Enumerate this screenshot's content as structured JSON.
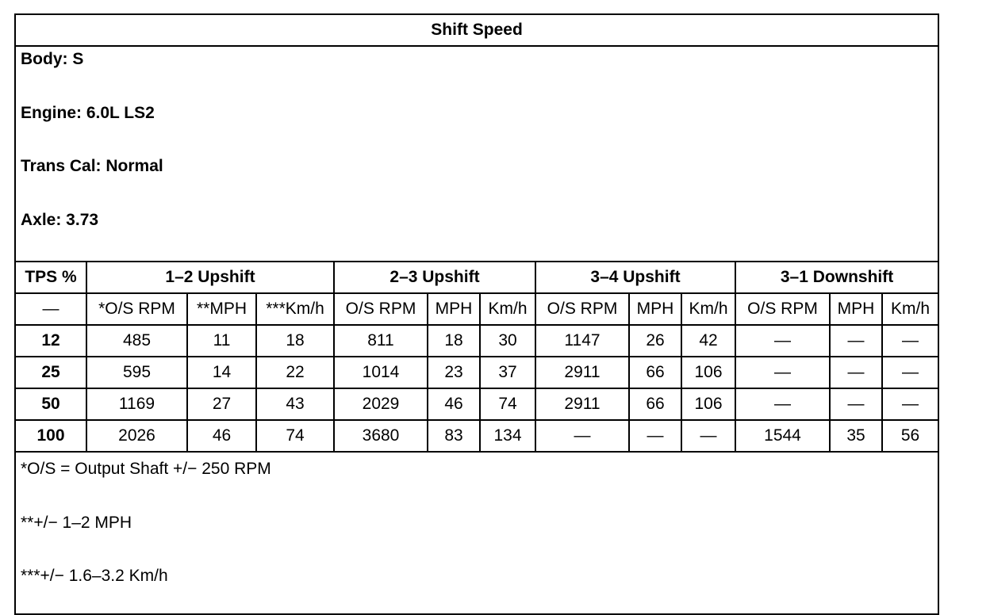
{
  "title": "Shift Speed",
  "info": [
    "Body: S",
    "Engine: 6.0L LS2",
    "Trans Cal: Normal",
    "Axle: 3.73"
  ],
  "header": {
    "tps": "TPS %",
    "groups": [
      "1–2 Upshift",
      "2–3 Upshift",
      "3–4 Upshift",
      "3–1 Downshift"
    ]
  },
  "subheader": [
    "—",
    "*O/S RPM",
    "**MPH",
    "***Km/h",
    "O/S RPM",
    "MPH",
    "Km/h",
    "O/S RPM",
    "MPH",
    "Km/h",
    "O/S RPM",
    "MPH",
    "Km/h"
  ],
  "rows": [
    [
      "12",
      "485",
      "11",
      "18",
      "811",
      "18",
      "30",
      "1147",
      "26",
      "42",
      "—",
      "—",
      "—"
    ],
    [
      "25",
      "595",
      "14",
      "22",
      "1014",
      "23",
      "37",
      "2911",
      "66",
      "106",
      "—",
      "—",
      "—"
    ],
    [
      "50",
      "1169",
      "27",
      "43",
      "2029",
      "46",
      "74",
      "2911",
      "66",
      "106",
      "—",
      "—",
      "—"
    ],
    [
      "100",
      "2026",
      "46",
      "74",
      "3680",
      "83",
      "134",
      "—",
      "—",
      "—",
      "1544",
      "35",
      "56"
    ]
  ],
  "footnotes": [
    "*O/S = Output Shaft +/− 250 RPM",
    "**+/− 1–2 MPH",
    "***+/− 1.6–3.2 Km/h"
  ]
}
